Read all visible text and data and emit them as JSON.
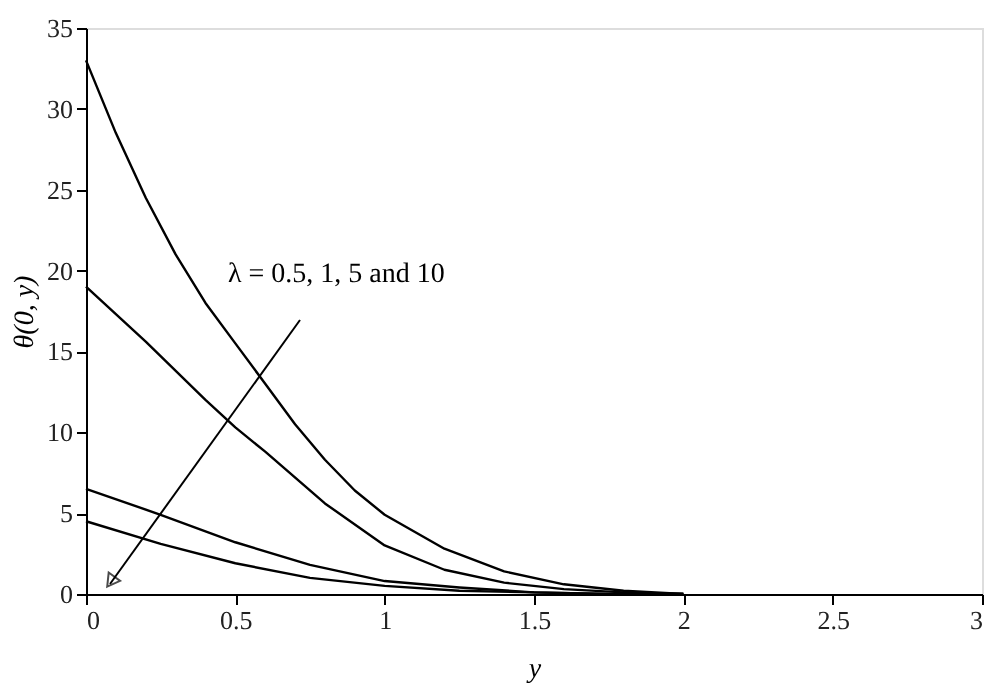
{
  "chart_data": {
    "type": "line",
    "xlabel": "y",
    "ylabel": "θ(0, y)",
    "xlim": [
      0,
      3
    ],
    "xticks": [
      0,
      0.5,
      1,
      1.5,
      2,
      2.5,
      3
    ],
    "ylim": [
      0,
      35
    ],
    "yticks": [
      0,
      5,
      10,
      15,
      20,
      25,
      30,
      35
    ],
    "grid": false,
    "legend": false,
    "marker": "none",
    "line_style": "solid",
    "annotations": [
      "λ = 0.5, 1, 5 and 10"
    ],
    "series": [
      {
        "color": "#000000",
        "x": [
          0,
          0.1,
          0.2,
          0.3,
          0.4,
          0.5,
          0.6,
          0.7,
          0.8,
          0.9,
          1.0,
          1.2,
          1.4,
          1.6,
          1.8,
          2.0
        ],
        "values": [
          33,
          28.5,
          24.5,
          21,
          18,
          15.5,
          13,
          10.5,
          8.3,
          6.4,
          4.9,
          2.8,
          1.4,
          0.6,
          0.2,
          0
        ]
      },
      {
        "color": "#000000",
        "x": [
          0,
          0.2,
          0.4,
          0.5,
          0.6,
          0.8,
          1.0,
          1.2,
          1.4,
          1.6,
          1.8,
          2.0
        ],
        "values": [
          19,
          15.6,
          12,
          10.3,
          8.8,
          5.6,
          3.0,
          1.5,
          0.7,
          0.3,
          0.1,
          0
        ]
      },
      {
        "color": "#000000",
        "x": [
          0,
          0.25,
          0.5,
          0.75,
          1.0,
          1.25,
          1.5,
          1.75,
          2.0
        ],
        "values": [
          6.5,
          4.9,
          3.2,
          1.8,
          0.8,
          0.4,
          0.1,
          0,
          0
        ]
      },
      {
        "color": "#000000",
        "x": [
          0,
          0.25,
          0.5,
          0.75,
          1.0,
          1.25,
          1.5,
          1.75,
          2.0
        ],
        "values": [
          4.5,
          3.1,
          1.9,
          1.0,
          0.5,
          0.2,
          0.1,
          0,
          0
        ]
      }
    ]
  }
}
